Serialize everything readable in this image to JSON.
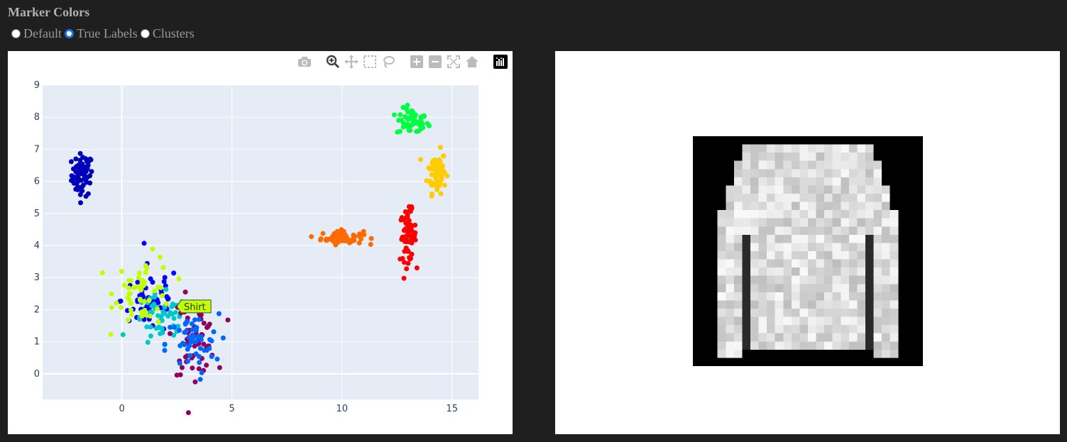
{
  "header": {
    "title": "Marker Colors"
  },
  "radios": [
    {
      "label": "Default",
      "checked": false
    },
    {
      "label": "True Labels",
      "checked": true
    },
    {
      "label": "Clusters",
      "checked": false
    }
  ],
  "modebar": {
    "icons": [
      "camera-icon",
      "zoom-icon",
      "pan-icon",
      "box-select-icon",
      "lasso-icon",
      "zoom-in-icon",
      "zoom-out-icon",
      "autoscale-icon",
      "reset-axes-icon",
      "plotly-logo-icon"
    ]
  },
  "hover_label": "Shirt",
  "chart_data": {
    "type": "scatter",
    "title": "",
    "xlabel": "",
    "ylabel": "",
    "xlim": [
      -3.6,
      16.2
    ],
    "ylim": [
      -0.8,
      9.0
    ],
    "xticks": [
      0,
      5,
      10,
      15
    ],
    "yticks": [
      0,
      1,
      2,
      3,
      4,
      5,
      6,
      7,
      8,
      9
    ],
    "grid": true,
    "background": "#e5ecf6",
    "series": [
      {
        "color": "#0000b8",
        "center": [
          -1.8,
          6.2
        ],
        "spread": [
          0.4,
          0.55
        ],
        "count": 70
      },
      {
        "color": "#00ff40",
        "center": [
          13.2,
          7.85
        ],
        "spread": [
          0.6,
          0.35
        ],
        "count": 55
      },
      {
        "color": "#ffcc00",
        "center": [
          14.3,
          6.3
        ],
        "spread": [
          0.35,
          0.55
        ],
        "count": 70
      },
      {
        "color": "#ff6a00",
        "center": [
          10.0,
          4.25
        ],
        "spread": [
          0.8,
          0.18
        ],
        "count": 65
      },
      {
        "color": "#ff0000",
        "center": [
          13.0,
          4.3
        ],
        "spread": [
          0.3,
          0.65
        ],
        "count": 70
      },
      {
        "color": "#0000ff",
        "center": [
          1.3,
          2.3
        ],
        "spread": [
          1.1,
          0.9
        ],
        "count": 55
      },
      {
        "color": "#00c8c8",
        "center": [
          1.8,
          1.6
        ],
        "spread": [
          1.1,
          0.7
        ],
        "count": 55
      },
      {
        "color": "#c0ff00",
        "center": [
          1.0,
          2.6
        ],
        "spread": [
          1.1,
          0.9
        ],
        "count": 55
      },
      {
        "color": "#900060",
        "center": [
          3.3,
          1.2
        ],
        "spread": [
          0.8,
          1.0
        ],
        "count": 65
      },
      {
        "color": "#0066ff",
        "center": [
          3.2,
          0.9
        ],
        "spread": [
          1.0,
          0.8
        ],
        "count": 50
      }
    ]
  }
}
